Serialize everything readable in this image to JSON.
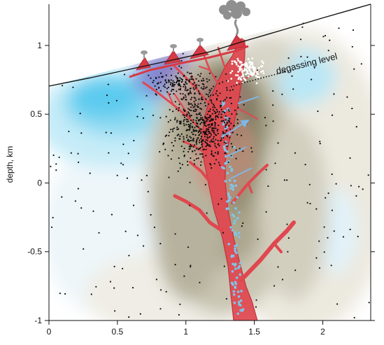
{
  "figure": {
    "annotation": "degassing level"
  },
  "chart_data": {
    "type": "cross-section",
    "ylabel": "depth, km",
    "xlabel": "",
    "xlim": [
      0,
      2.35
    ],
    "ylim": [
      -1,
      1.3
    ],
    "x_ticks": [
      {
        "value": 0,
        "label": "0"
      },
      {
        "value": 0.5,
        "label": "0.5"
      },
      {
        "value": 1,
        "label": "1"
      },
      {
        "value": 1.5,
        "label": "1.5"
      },
      {
        "value": 2,
        "label": "2"
      }
    ],
    "y_ticks": [
      {
        "value": 1,
        "label": "1"
      },
      {
        "value": 0.5,
        "label": "0.5"
      },
      {
        "value": 0,
        "label": "0"
      },
      {
        "value": -0.5,
        "label": "-0.5"
      },
      {
        "value": -1,
        "label": "-1"
      }
    ],
    "colors": {
      "low_anomaly": "#4fc3e8",
      "high_anomaly": "#8a8468",
      "magma": "#e0474f",
      "magma_edge": "#c02a35",
      "earthquakes": "#111111",
      "gas_bubbles": "#7fc6ea"
    }
  }
}
